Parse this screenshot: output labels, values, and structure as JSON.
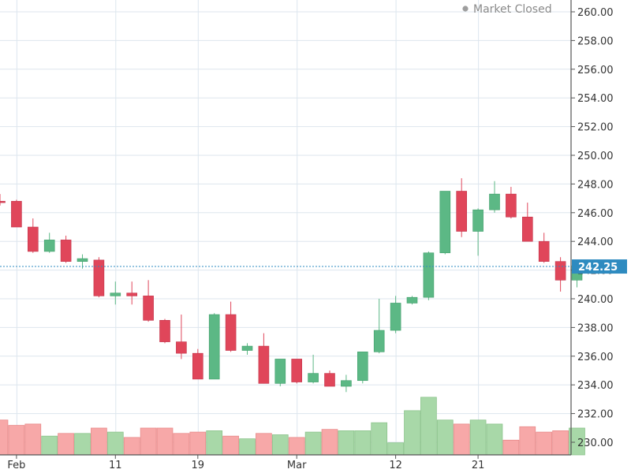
{
  "status": {
    "text": "Market Closed",
    "dot_color": "#9e9e9e"
  },
  "last_price": {
    "value": 242.25,
    "label": "242.25",
    "color": "#2e8bc0"
  },
  "colors": {
    "up_body": "#5cb885",
    "up_wick": "#5cb885",
    "down_body": "#e0465a",
    "down_wick": "#e0465a",
    "up_volume": "#a8d8a8",
    "down_volume": "#f7a8a8",
    "grid": "#dde6ee",
    "axis": "#555555"
  },
  "chart_data": {
    "type": "candlestick",
    "y_ticks": [
      "260.00",
      "258.00",
      "256.00",
      "254.00",
      "252.00",
      "250.00",
      "248.00",
      "246.00",
      "244.00",
      "242.00",
      "240.00",
      "238.00",
      "236.00",
      "234.00",
      "232.00",
      "230.00"
    ],
    "ylim": [
      229.4,
      260.8
    ],
    "x_labels": [
      {
        "text": "Feb",
        "index": 1
      },
      {
        "text": "11",
        "index": 7
      },
      {
        "text": "19",
        "index": 12
      },
      {
        "text": "Mar",
        "index": 18
      },
      {
        "text": "12",
        "index": 24
      },
      {
        "text": "21",
        "index": 29
      }
    ],
    "grid_indices": [
      1,
      7,
      12,
      18,
      24,
      29
    ],
    "candles": [
      {
        "o": 246.8,
        "h": 247.3,
        "l": 246.5,
        "c": 246.7
      },
      {
        "o": 246.8,
        "h": 246.9,
        "l": 245.0,
        "c": 245.0
      },
      {
        "o": 245.0,
        "h": 245.6,
        "l": 243.2,
        "c": 243.3
      },
      {
        "o": 243.3,
        "h": 244.6,
        "l": 243.2,
        "c": 244.1
      },
      {
        "o": 244.1,
        "h": 244.4,
        "l": 242.5,
        "c": 242.6
      },
      {
        "o": 242.6,
        "h": 243.1,
        "l": 242.1,
        "c": 242.8
      },
      {
        "o": 242.7,
        "h": 242.9,
        "l": 240.1,
        "c": 240.2
      },
      {
        "o": 240.2,
        "h": 241.2,
        "l": 239.6,
        "c": 240.4
      },
      {
        "o": 240.4,
        "h": 241.2,
        "l": 239.6,
        "c": 240.2
      },
      {
        "o": 240.2,
        "h": 241.3,
        "l": 238.4,
        "c": 238.5
      },
      {
        "o": 238.5,
        "h": 238.6,
        "l": 236.9,
        "c": 237.0
      },
      {
        "o": 237.0,
        "h": 238.9,
        "l": 235.8,
        "c": 236.2
      },
      {
        "o": 236.2,
        "h": 236.5,
        "l": 234.4,
        "c": 234.4
      },
      {
        "o": 234.4,
        "h": 239.0,
        "l": 234.4,
        "c": 238.9
      },
      {
        "o": 238.9,
        "h": 239.8,
        "l": 236.3,
        "c": 236.4
      },
      {
        "o": 236.4,
        "h": 236.9,
        "l": 236.1,
        "c": 236.7
      },
      {
        "o": 236.7,
        "h": 237.6,
        "l": 234.1,
        "c": 234.1
      },
      {
        "o": 234.1,
        "h": 235.8,
        "l": 233.9,
        "c": 235.8
      },
      {
        "o": 235.8,
        "h": 235.8,
        "l": 234.1,
        "c": 234.2
      },
      {
        "o": 234.2,
        "h": 236.1,
        "l": 234.1,
        "c": 234.8
      },
      {
        "o": 234.8,
        "h": 235.0,
        "l": 233.9,
        "c": 233.9
      },
      {
        "o": 233.9,
        "h": 234.7,
        "l": 233.5,
        "c": 234.3
      },
      {
        "o": 234.3,
        "h": 236.3,
        "l": 234.1,
        "c": 236.3
      },
      {
        "o": 236.3,
        "h": 240.0,
        "l": 236.2,
        "c": 237.8
      },
      {
        "o": 237.8,
        "h": 240.2,
        "l": 237.6,
        "c": 239.7
      },
      {
        "o": 239.7,
        "h": 240.2,
        "l": 239.6,
        "c": 240.1
      },
      {
        "o": 240.1,
        "h": 243.3,
        "l": 239.9,
        "c": 243.2
      },
      {
        "o": 243.2,
        "h": 247.5,
        "l": 243.1,
        "c": 247.5
      },
      {
        "o": 247.5,
        "h": 248.4,
        "l": 244.3,
        "c": 244.7
      },
      {
        "o": 244.7,
        "h": 246.3,
        "l": 243.0,
        "c": 246.2
      },
      {
        "o": 246.2,
        "h": 248.2,
        "l": 246.0,
        "c": 247.3
      },
      {
        "o": 247.3,
        "h": 247.8,
        "l": 245.6,
        "c": 245.7
      },
      {
        "o": 245.7,
        "h": 246.7,
        "l": 244.0,
        "c": 244.0
      },
      {
        "o": 244.0,
        "h": 244.6,
        "l": 242.5,
        "c": 242.6
      },
      {
        "o": 242.6,
        "h": 242.9,
        "l": 240.5,
        "c": 241.3
      },
      {
        "o": 241.3,
        "h": 242.6,
        "l": 240.8,
        "c": 242.3
      }
    ],
    "volumes": [
      2.6,
      2.2,
      2.3,
      1.4,
      1.6,
      1.6,
      2.0,
      1.7,
      1.3,
      2.0,
      2.0,
      1.6,
      1.7,
      1.8,
      1.4,
      1.2,
      1.6,
      1.5,
      1.3,
      1.7,
      1.9,
      1.8,
      1.8,
      2.4,
      0.9,
      3.3,
      4.3,
      2.6,
      2.3,
      2.6,
      2.3,
      1.1,
      2.1,
      1.7,
      1.8,
      2.0
    ]
  }
}
